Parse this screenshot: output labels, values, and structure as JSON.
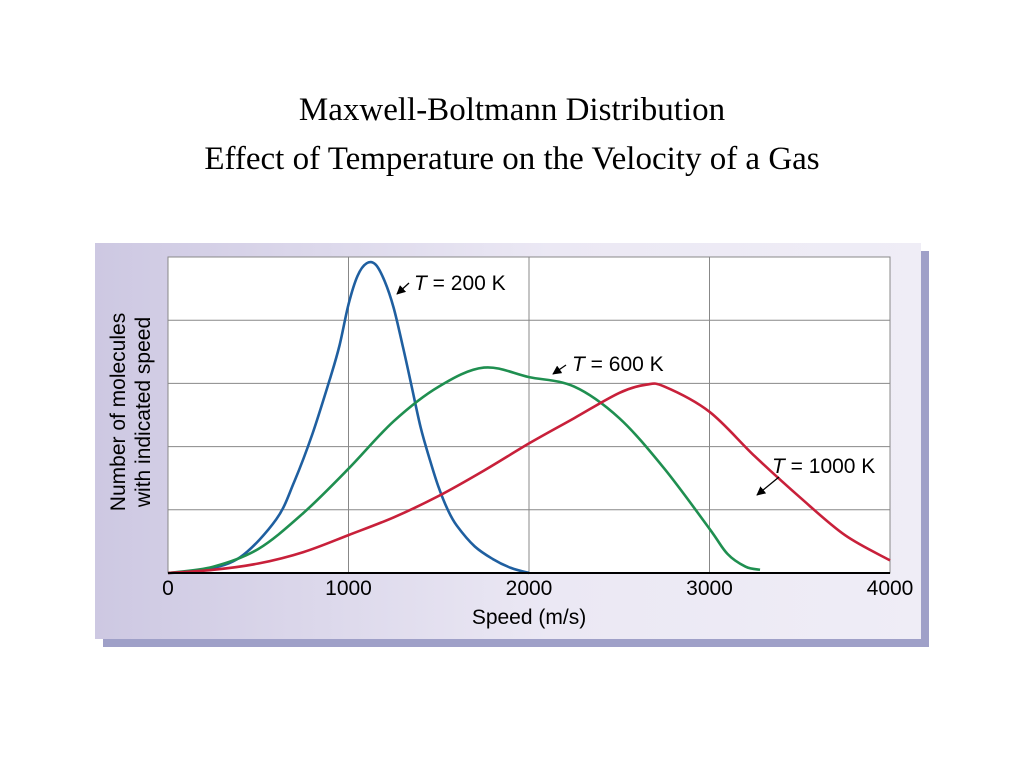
{
  "slide": {
    "title_line1": "Maxwell-Boltmann Distribution",
    "title_line2": "Effect of Temperature on the Velocity of a Gas"
  },
  "chart_data": {
    "type": "line",
    "title": "",
    "xlabel": "Speed (m/s)",
    "ylabel_line1": "Number of molecules",
    "ylabel_line2": "with indicated speed",
    "xlim": [
      0,
      4000
    ],
    "ylim": [
      0,
      5
    ],
    "x_ticks": [
      0,
      1000,
      2000,
      3000,
      4000
    ],
    "x_tick_labels": [
      "0",
      "1000",
      "2000",
      "3000",
      "4000"
    ],
    "y_gridlines": [
      1,
      2,
      3,
      4
    ],
    "grid": true,
    "legend": "none",
    "series": [
      {
        "name": "T = 200 K",
        "label_prefix": "T",
        "label_suffix": " = 200 K",
        "color": "#1f5fa0",
        "x": [
          0,
          200,
          400,
          600,
          700,
          800,
          900,
          950,
          1000,
          1050,
          1100,
          1150,
          1200,
          1250,
          1300,
          1350,
          1400,
          1450,
          1500,
          1550,
          1600,
          1700,
          1800,
          1900,
          2000
        ],
        "y": [
          0,
          0.05,
          0.25,
          0.85,
          1.45,
          2.2,
          3.1,
          3.6,
          4.25,
          4.7,
          4.9,
          4.88,
          4.62,
          4.2,
          3.6,
          2.95,
          2.3,
          1.8,
          1.35,
          1.0,
          0.75,
          0.42,
          0.22,
          0.08,
          0
        ]
      },
      {
        "name": "T = 600 K",
        "label_prefix": "T",
        "label_suffix": " = 600 K",
        "color": "#1f8f50",
        "x": [
          0,
          250,
          500,
          750,
          1000,
          1250,
          1500,
          1750,
          2000,
          2250,
          2500,
          2750,
          3000,
          3100,
          3200,
          3280
        ],
        "y": [
          0,
          0.1,
          0.38,
          0.95,
          1.65,
          2.4,
          2.95,
          3.25,
          3.1,
          2.95,
          2.45,
          1.65,
          0.7,
          0.3,
          0.1,
          0.05
        ]
      },
      {
        "name": "T = 1000 K",
        "label_prefix": "T",
        "label_suffix": " = 1000 K",
        "color": "#c8203a",
        "x": [
          0,
          250,
          500,
          750,
          1000,
          1250,
          1500,
          1750,
          2000,
          2250,
          2500,
          2650,
          2750,
          3000,
          3250,
          3500,
          3750,
          4000
        ],
        "y": [
          0,
          0.05,
          0.15,
          0.33,
          0.6,
          0.88,
          1.22,
          1.62,
          2.05,
          2.45,
          2.85,
          2.98,
          2.95,
          2.55,
          1.85,
          1.2,
          0.6,
          0.2
        ]
      }
    ],
    "annotations": [
      {
        "series": 0,
        "text_x": 1250,
        "text_y": 4.5,
        "arrow_to_x": 1250,
        "arrow_to_y": 4.3
      },
      {
        "series": 1,
        "text_x": 2200,
        "text_y": 3.2,
        "arrow_to_x": 2060,
        "arrow_to_y": 3.0
      },
      {
        "series": 2,
        "text_x": 3300,
        "text_y": 1.5,
        "arrow_to_x": 3250,
        "arrow_to_y": 1.2
      }
    ]
  }
}
